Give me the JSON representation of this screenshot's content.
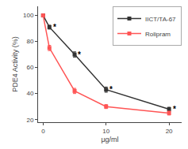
{
  "chart_data": {
    "type": "line",
    "xlabel": "μg/ml",
    "ylabel": "PDE4 Activity (%)",
    "x": [
      0,
      1,
      5,
      10,
      20
    ],
    "series": [
      {
        "name": "IICT/TA-67",
        "color": "#333333",
        "marker": "square",
        "values": [
          100,
          91,
          70,
          43,
          28
        ],
        "error": [
          0,
          1.5,
          2,
          2,
          1.5
        ]
      },
      {
        "name": "Rolipram",
        "color": "#ff5555",
        "marker": "square",
        "values": [
          100,
          75,
          42,
          30,
          25
        ],
        "error": [
          0,
          2,
          2,
          1.5,
          1.5
        ]
      }
    ],
    "xlim": [
      -0.8,
      22
    ],
    "ylim": [
      18,
      107
    ],
    "xticks": [
      0,
      10,
      20
    ],
    "yticks": [
      20,
      40,
      60,
      80,
      100
    ],
    "annotations": [
      {
        "x": 1.3,
        "y": 91,
        "text": "*"
      },
      {
        "x": 5.3,
        "y": 70,
        "text": "*"
      },
      {
        "x": 10.3,
        "y": 43,
        "text": "*"
      },
      {
        "x": 20.3,
        "y": 28,
        "text": "*"
      }
    ],
    "legend": "upper right",
    "grid": false
  }
}
